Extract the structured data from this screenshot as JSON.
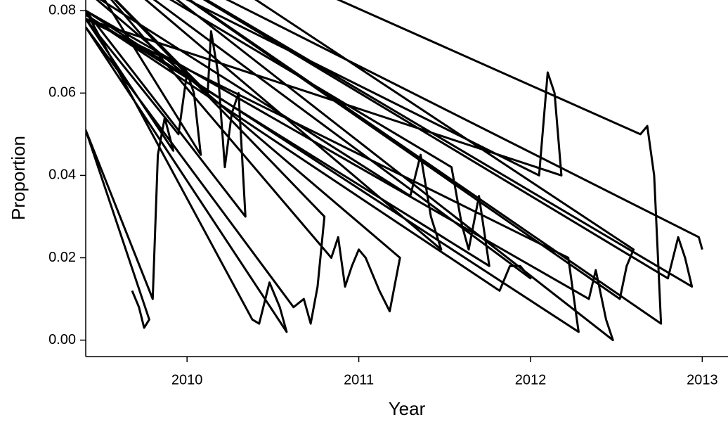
{
  "chart_data": {
    "type": "line",
    "x_label": "Year",
    "y_label": "Proportion",
    "x": [
      2009.68,
      2009.72,
      2009.75,
      2009.78,
      2009.41,
      2009.8,
      2009.83,
      2009.87,
      2009.92,
      2009.41,
      2009.95,
      2010,
      2010.04,
      2010.08,
      2009.41,
      2010.12,
      2010.14,
      2010.18,
      2010.22,
      2010.26,
      2010.3,
      2010.34,
      2009.41,
      2010.38,
      2010.42,
      2010.48,
      2010.54,
      2010.58,
      2009.41,
      2010.62,
      2010.68,
      2010.72,
      2010.76,
      2010.8,
      2009.41,
      2010.84,
      2010.88,
      2010.92,
      2010.96,
      2011,
      2011.04,
      2011.08,
      2011.12,
      2011.18,
      2011.24,
      2009.41,
      2011.3,
      2011.36,
      2011.42,
      2011.48,
      2009.41,
      2011.54,
      2011.6,
      2011.64,
      2011.7,
      2011.76,
      2009.41,
      2011.82,
      2011.88,
      2011.94,
      2012,
      2009.41,
      2012.05,
      2012.1,
      2012.14,
      2012.18,
      2009.41,
      2012.22,
      2012.28,
      2009.41,
      2012.34,
      2012.38,
      2012.44,
      2012.48,
      2009.41,
      2012.52,
      2012.56,
      2012.6,
      2009.41,
      2012.64,
      2012.68,
      2012.72,
      2012.76,
      2009.41,
      2012.8,
      2012.86,
      2012.9,
      2012.94,
      2009.41,
      2012.98,
      2013
    ],
    "series": [
      {
        "color": "#000000",
        "values": [
          0.012,
          0.008,
          0.003,
          0.005,
          0.051,
          0.01,
          0.045,
          0.054,
          0.046,
          0.078,
          0.05,
          0.065,
          0.06,
          0.045,
          0.09,
          0.06,
          0.075,
          0.065,
          0.042,
          0.055,
          0.06,
          0.03,
          0.08,
          0.005,
          0.004,
          0.014,
          0.008,
          0.002,
          0.076,
          0.008,
          0.01,
          0.004,
          0.013,
          0.03,
          0.09,
          0.02,
          0.025,
          0.013,
          0.018,
          0.022,
          0.02,
          0.016,
          0.012,
          0.007,
          0.02,
          0.085,
          0.035,
          0.045,
          0.03,
          0.022,
          0.095,
          0.042,
          0.028,
          0.022,
          0.035,
          0.018,
          0.079,
          0.012,
          0.018,
          0.018,
          0.015,
          0.095,
          0.04,
          0.065,
          0.06,
          0.04,
          0.078,
          0.02,
          0.002,
          0.08,
          0.01,
          0.017,
          0.005,
          0.0,
          0.1,
          0.01,
          0.018,
          0.022,
          0.11,
          0.05,
          0.052,
          0.04,
          0.004,
          0.1,
          0.015,
          0.025,
          0.02,
          0.013,
          0.1,
          0.025,
          0.022
        ]
      }
    ],
    "xlim": [
      2009.41,
      2013.15
    ],
    "ylim": [
      -0.004,
      0.0826
    ],
    "xticks": [
      2010,
      2011,
      2012,
      2013
    ],
    "yticks": [
      {
        "value": 0,
        "label": "0.00"
      },
      {
        "value": 0.02,
        "label": "0.02"
      },
      {
        "value": 0.04,
        "label": "0.04"
      },
      {
        "value": 0.06,
        "label": "0.06"
      },
      {
        "value": 0.08,
        "label": "0.08"
      }
    ],
    "grid": false
  }
}
